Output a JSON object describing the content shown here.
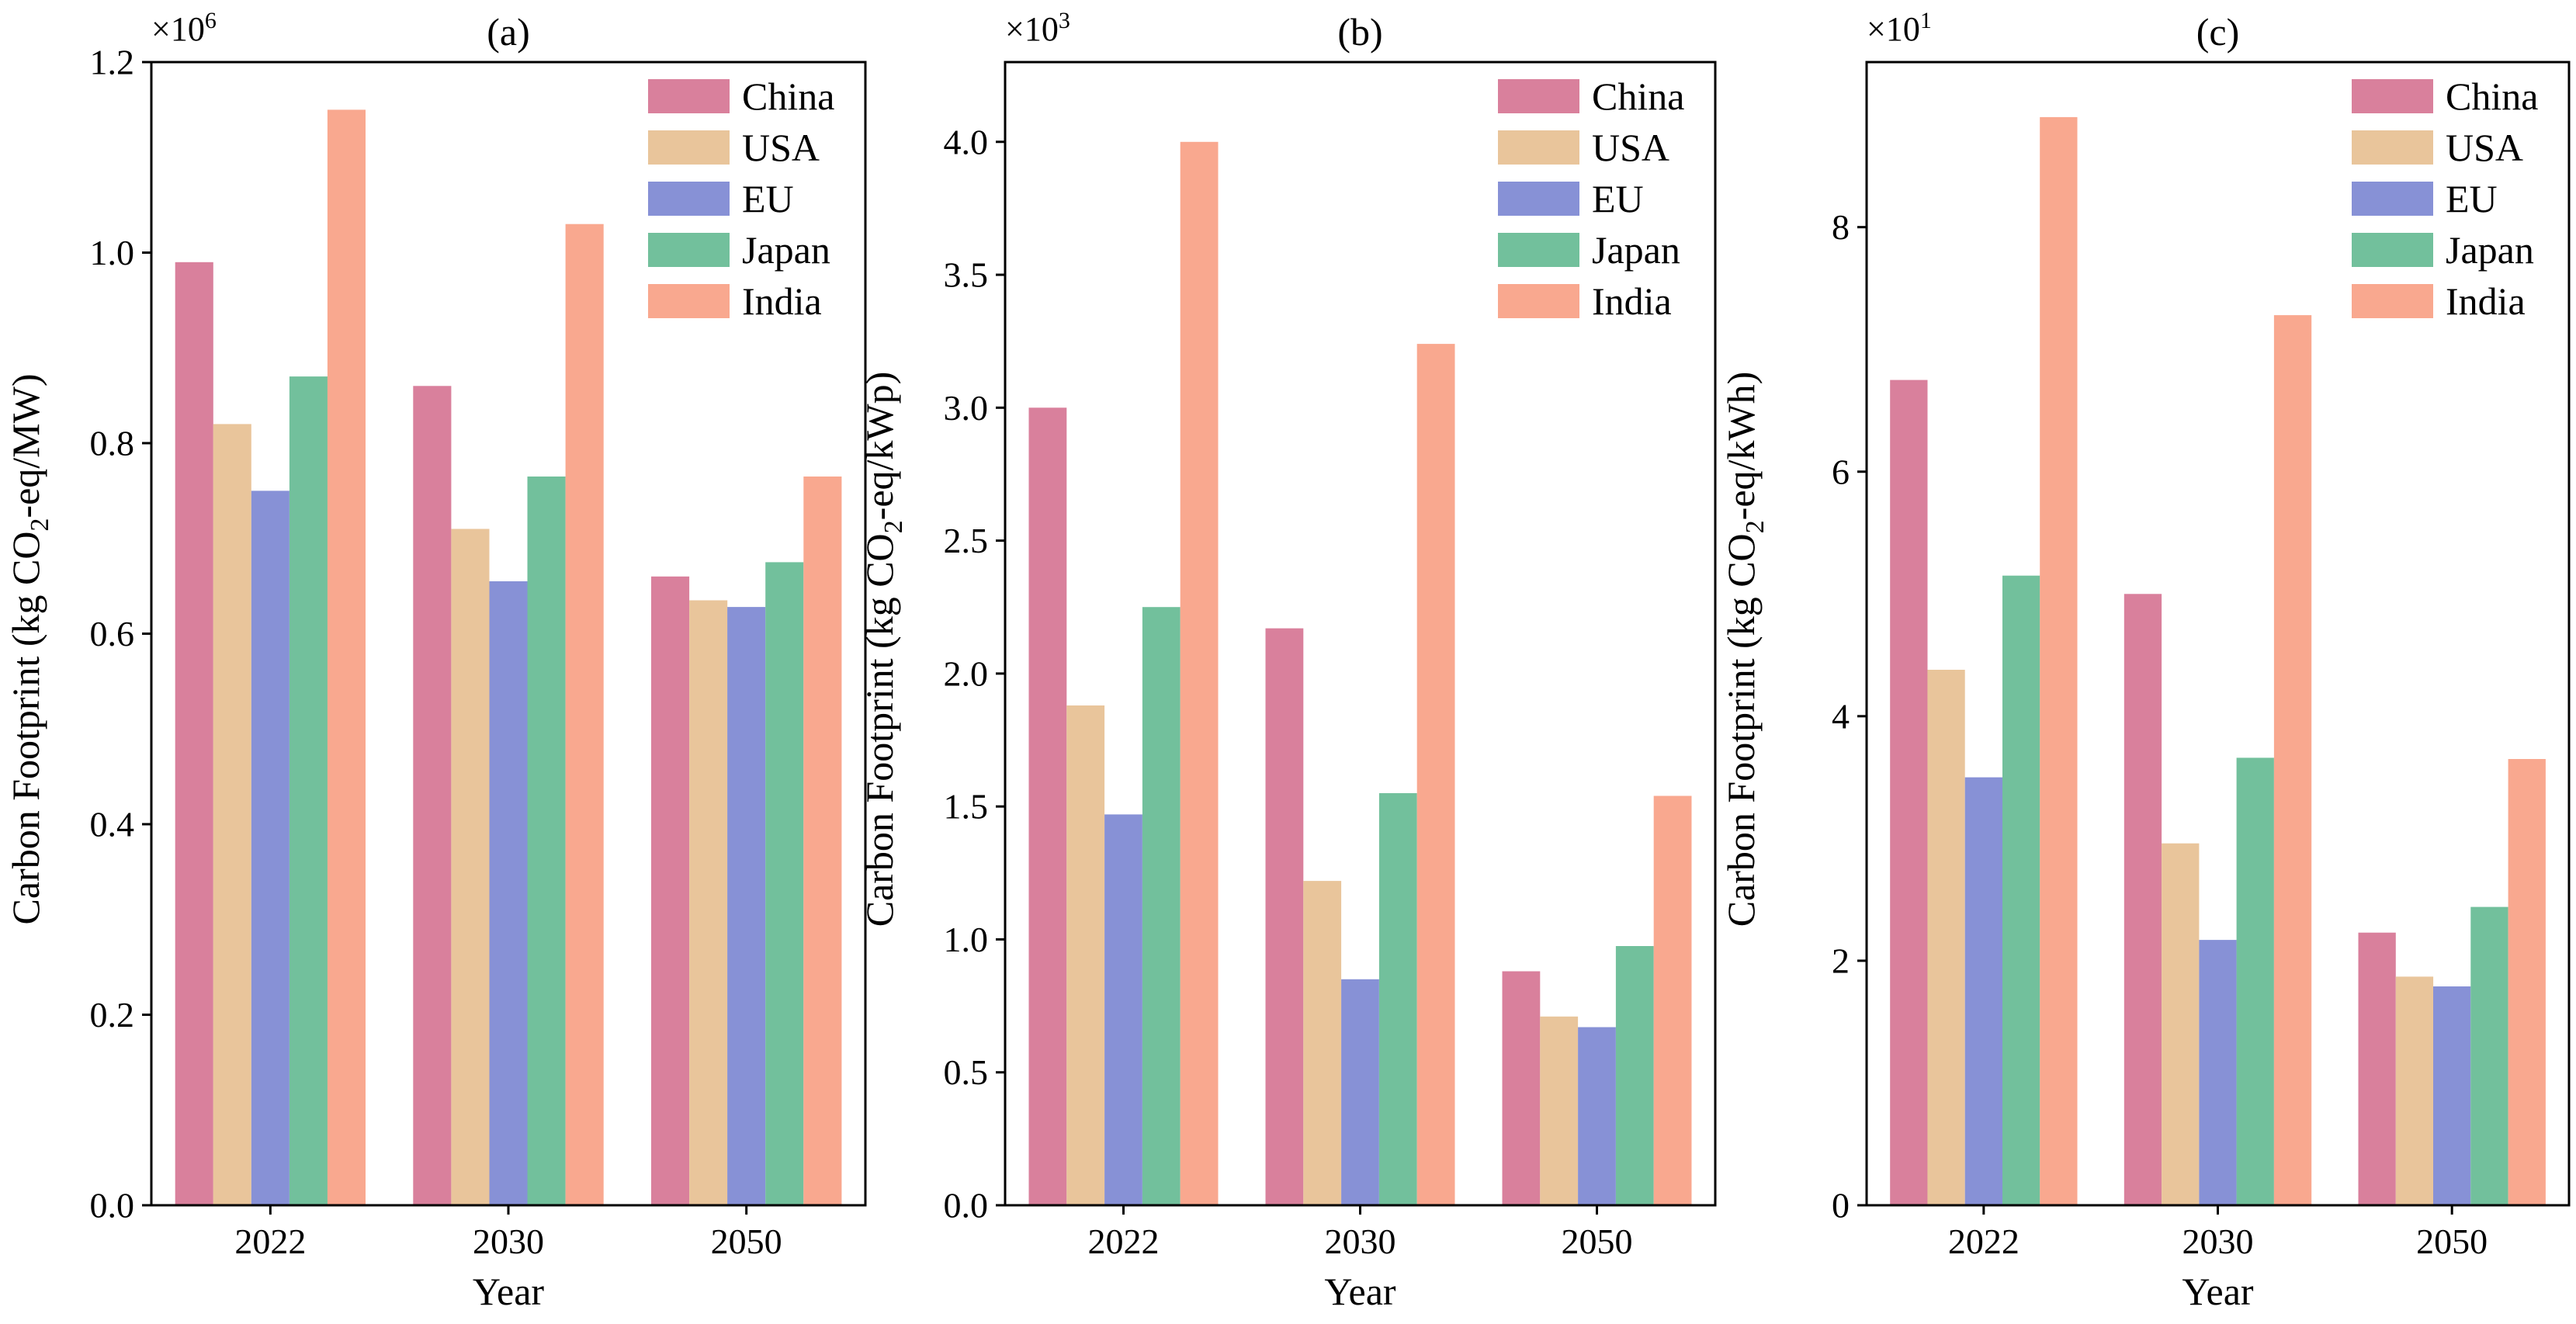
{
  "chart_data": [
    {
      "type": "bar",
      "title": "(a)",
      "xlabel": "Year",
      "ylabel": {
        "pre": "Carbon Footprint (kg CO",
        "sub": "2",
        "post": "-eq/MW)"
      },
      "multiplier": {
        "base": "×10",
        "exp": "6"
      },
      "ylim": [
        0,
        1.2
      ],
      "yticks": [
        "0.0",
        "0.2",
        "0.4",
        "0.6",
        "0.8",
        "1.0",
        "1.2"
      ],
      "categories": [
        "2022",
        "2030",
        "2050"
      ],
      "legend_position": "top-right",
      "series": [
        {
          "name": "China",
          "color": "#d9809c",
          "values": [
            0.99,
            0.86,
            0.66
          ]
        },
        {
          "name": "USA",
          "color": "#e9c59b",
          "values": [
            0.82,
            0.71,
            0.635
          ]
        },
        {
          "name": "EU",
          "color": "#8791d6",
          "values": [
            0.75,
            0.655,
            0.628
          ]
        },
        {
          "name": "Japan",
          "color": "#72c09c",
          "values": [
            0.87,
            0.765,
            0.675
          ]
        },
        {
          "name": "India",
          "color": "#f9a88f",
          "values": [
            1.15,
            1.03,
            0.765
          ]
        }
      ]
    },
    {
      "type": "bar",
      "title": "(b)",
      "xlabel": "Year",
      "ylabel": {
        "pre": "Carbon Footprint (kg CO",
        "sub": "2",
        "post": "-eq/kWp)"
      },
      "multiplier": {
        "base": "×10",
        "exp": "3"
      },
      "ylim": [
        0,
        4.3
      ],
      "yticks": [
        "0.0",
        "0.5",
        "1.0",
        "1.5",
        "2.0",
        "2.5",
        "3.0",
        "3.5",
        "4.0"
      ],
      "categories": [
        "2022",
        "2030",
        "2050"
      ],
      "legend_position": "top-right",
      "series": [
        {
          "name": "China",
          "color": "#d9809c",
          "values": [
            3.0,
            2.17,
            0.88
          ]
        },
        {
          "name": "USA",
          "color": "#e9c59b",
          "values": [
            1.88,
            1.22,
            0.71
          ]
        },
        {
          "name": "EU",
          "color": "#8791d6",
          "values": [
            1.47,
            0.85,
            0.67
          ]
        },
        {
          "name": "Japan",
          "color": "#72c09c",
          "values": [
            2.25,
            1.55,
            0.975
          ]
        },
        {
          "name": "India",
          "color": "#f9a88f",
          "values": [
            4.0,
            3.24,
            1.54
          ]
        }
      ]
    },
    {
      "type": "bar",
      "title": "(c)",
      "xlabel": "Year",
      "ylabel": {
        "pre": "Carbon Footprint (kg CO",
        "sub": "2",
        "post": "-eq/kWh)"
      },
      "multiplier": {
        "base": "×10",
        "exp": "1"
      },
      "ylim": [
        0,
        9.35
      ],
      "yticks": [
        "0",
        "2",
        "4",
        "6",
        "8"
      ],
      "categories": [
        "2022",
        "2030",
        "2050"
      ],
      "legend_position": "top-right",
      "series": [
        {
          "name": "China",
          "color": "#d9809c",
          "values": [
            6.75,
            5.0,
            2.23
          ]
        },
        {
          "name": "USA",
          "color": "#e9c59b",
          "values": [
            4.38,
            2.96,
            1.87
          ]
        },
        {
          "name": "EU",
          "color": "#8791d6",
          "values": [
            3.5,
            2.17,
            1.79
          ]
        },
        {
          "name": "Japan",
          "color": "#72c09c",
          "values": [
            5.15,
            3.66,
            2.44
          ]
        },
        {
          "name": "India",
          "color": "#f9a88f",
          "values": [
            8.9,
            7.28,
            3.65
          ]
        }
      ]
    }
  ]
}
